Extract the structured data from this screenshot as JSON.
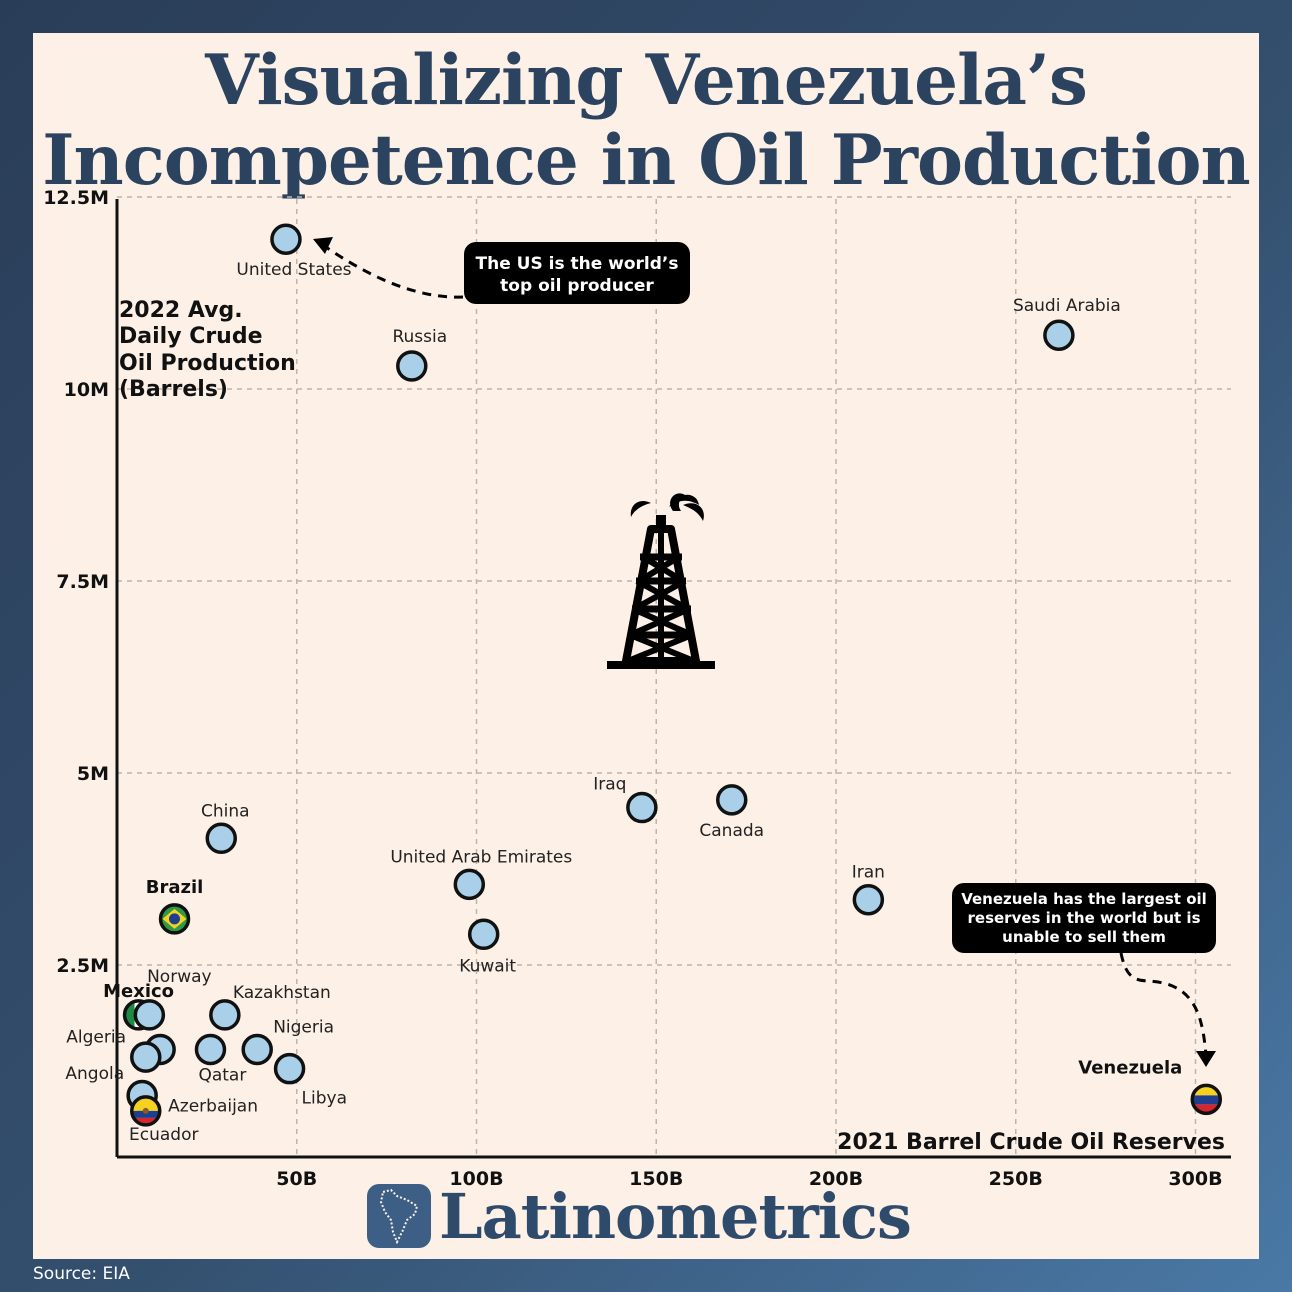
{
  "title": {
    "line1": "Visualizing Venezuela’s",
    "line2": "Incompetence in Oil Production"
  },
  "brand": {
    "name": "Latinometrics",
    "source": "Source: EIA"
  },
  "colors": {
    "point_fill": "#a9d0e8",
    "title": "#2c4360",
    "background": "#fdf1e7",
    "callout": "#000000"
  },
  "chart_data": {
    "type": "scatter",
    "xlabel": "2021 Barrel Crude Oil Reserves",
    "ylabel": [
      "2022 Avg.",
      "Daily Crude",
      "Oil Production",
      "(Barrels)"
    ],
    "xlim": [
      0,
      300000000000
    ],
    "ylim": [
      0,
      12500000
    ],
    "x_ticks": [
      {
        "value": 50000000000,
        "label": "50B"
      },
      {
        "value": 100000000000,
        "label": "100B"
      },
      {
        "value": 150000000000,
        "label": "150B"
      },
      {
        "value": 200000000000,
        "label": "200B"
      },
      {
        "value": 250000000000,
        "label": "250B"
      },
      {
        "value": 300000000000,
        "label": "300B"
      }
    ],
    "y_ticks": [
      {
        "value": 2500000,
        "label": "2.5M"
      },
      {
        "value": 5000000,
        "label": "5M"
      },
      {
        "value": 7500000,
        "label": "7.5M"
      },
      {
        "value": 10000000,
        "label": "10M"
      },
      {
        "value": 12500000,
        "label": "12.5M"
      }
    ],
    "grid": true,
    "points": [
      {
        "name": "United States",
        "x": 47000000000,
        "y": 11950000,
        "bold": false,
        "flag": "",
        "lx": 8,
        "ly": 36,
        "anchor": "middle"
      },
      {
        "name": "Russia",
        "x": 82000000000,
        "y": 10300000,
        "bold": false,
        "flag": "",
        "lx": 8,
        "ly": -24,
        "anchor": "middle"
      },
      {
        "name": "Saudi Arabia",
        "x": 262000000000,
        "y": 10700000,
        "bold": false,
        "flag": "",
        "lx": 8,
        "ly": -24,
        "anchor": "middle"
      },
      {
        "name": "China",
        "x": 29000000000,
        "y": 4150000,
        "bold": false,
        "flag": "",
        "lx": 4,
        "ly": -22,
        "anchor": "middle"
      },
      {
        "name": "Brazil",
        "x": 16000000000,
        "y": 3100000,
        "bold": true,
        "flag": "brazil",
        "lx": 0,
        "ly": -26,
        "anchor": "middle"
      },
      {
        "name": "Iraq",
        "x": 146000000000,
        "y": 4550000,
        "bold": false,
        "flag": "",
        "lx": -32,
        "ly": -18,
        "anchor": "middle"
      },
      {
        "name": "Canada",
        "x": 171000000000,
        "y": 4650000,
        "bold": false,
        "flag": "",
        "lx": 0,
        "ly": 36,
        "anchor": "middle"
      },
      {
        "name": "United Arab Emirates",
        "x": 98000000000,
        "y": 3550000,
        "bold": false,
        "flag": "",
        "lx": 12,
        "ly": -22,
        "anchor": "middle"
      },
      {
        "name": "Kuwait",
        "x": 102000000000,
        "y": 2900000,
        "bold": false,
        "flag": "",
        "lx": 4,
        "ly": 37,
        "anchor": "middle"
      },
      {
        "name": "Iran",
        "x": 209000000000,
        "y": 3350000,
        "bold": false,
        "flag": "",
        "lx": 0,
        "ly": -22,
        "anchor": "middle"
      },
      {
        "name": "Venezuela",
        "x": 303000000000,
        "y": 750000,
        "bold": true,
        "flag": "venezuela",
        "lx": -76,
        "ly": -26,
        "anchor": "middle"
      },
      {
        "name": "Mexico",
        "x": 6000000000,
        "y": 1850000,
        "bold": true,
        "flag": "mexico",
        "lx": 0,
        "ly": -18,
        "anchor": "middle"
      },
      {
        "name": "Norway",
        "x": 9000000000,
        "y": 1850000,
        "bold": false,
        "flag": "",
        "lx": 30,
        "ly": -33,
        "anchor": "middle"
      },
      {
        "name": "Kazakhstan",
        "x": 30000000000,
        "y": 1850000,
        "bold": false,
        "flag": "",
        "lx": 8,
        "ly": -17,
        "anchor": "start"
      },
      {
        "name": "Nigeria",
        "x": 39000000000,
        "y": 1400000,
        "bold": false,
        "flag": "",
        "lx": 16,
        "ly": -17,
        "anchor": "start"
      },
      {
        "name": "Qatar",
        "x": 26000000000,
        "y": 1400000,
        "bold": false,
        "flag": "",
        "lx": -12,
        "ly": 31,
        "anchor": "start"
      },
      {
        "name": "Libya",
        "x": 48000000000,
        "y": 1150000,
        "bold": false,
        "flag": "",
        "lx": 12,
        "ly": 35,
        "anchor": "start"
      },
      {
        "name": "Algeria",
        "x": 12000000000,
        "y": 1400000,
        "bold": false,
        "flag": "",
        "lx": -64,
        "ly": -7,
        "anchor": "middle"
      },
      {
        "name": "Angola",
        "x": 8000000000,
        "y": 1300000,
        "bold": false,
        "flag": "",
        "lx": -51,
        "ly": 22,
        "anchor": "middle"
      },
      {
        "name": "Azerbaijan",
        "x": 7000000000,
        "y": 800000,
        "bold": false,
        "flag": "",
        "lx": 26,
        "ly": 16,
        "anchor": "start"
      },
      {
        "name": "Ecuador",
        "x": 8000000000,
        "y": 600000,
        "bold": false,
        "flag": "ecuador",
        "lx": 18,
        "ly": 29,
        "anchor": "middle"
      }
    ],
    "annotations": [
      {
        "lines": [
          "The US is the world’s",
          "top oil producer"
        ]
      },
      {
        "lines": [
          "Venezuela has the largest oil",
          "reserves in the world but is",
          "unable to sell them"
        ]
      }
    ]
  }
}
